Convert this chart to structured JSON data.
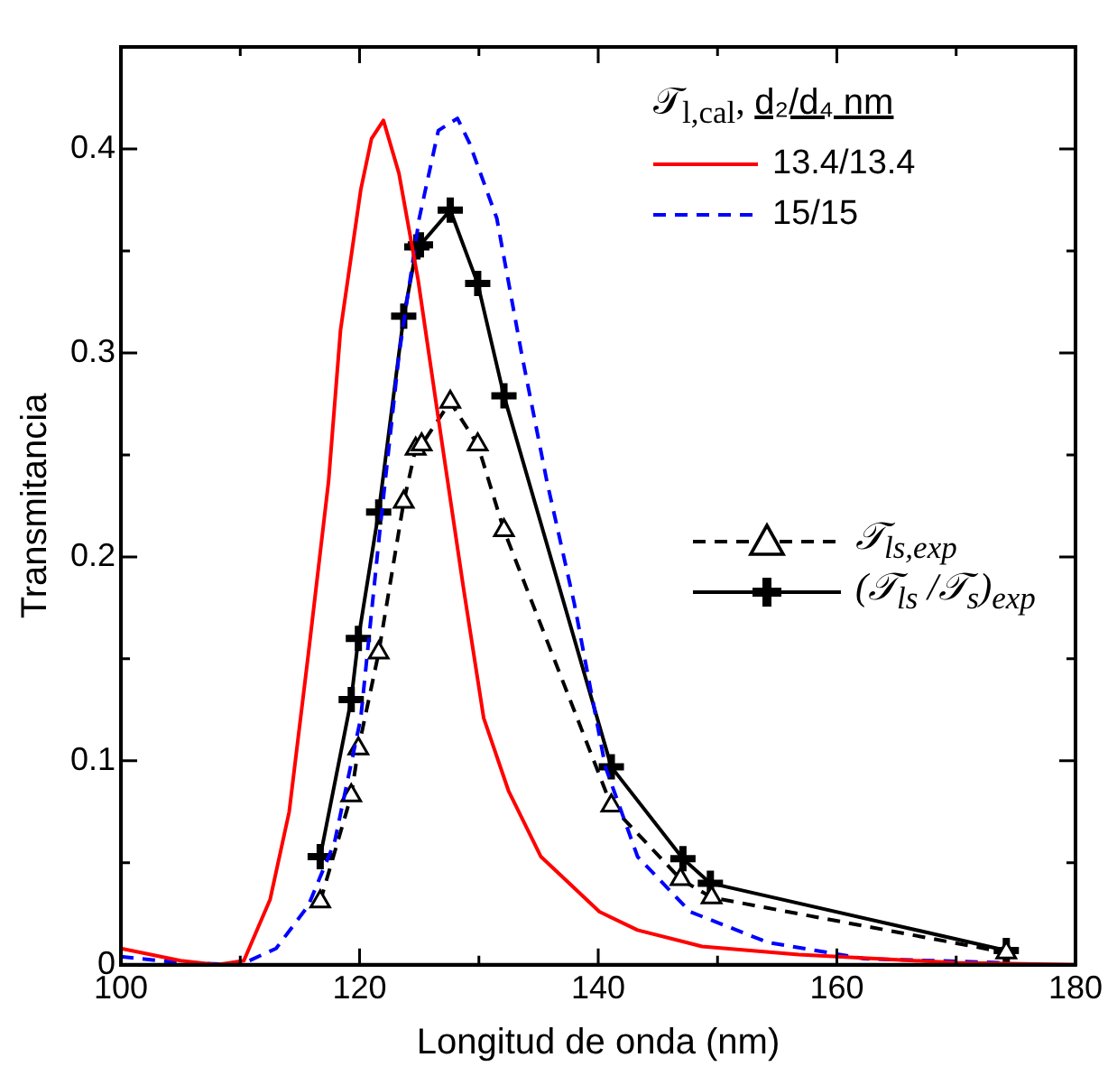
{
  "chart_data": {
    "type": "line",
    "xlabel": "Longitud de onda (nm)",
    "ylabel": "Transmitancia",
    "legend_title": "𝒯$_{l,cal}$, d₂/d₄ nm",
    "legend": "top right",
    "grid": false,
    "xlim": [
      100,
      180
    ],
    "ylim": [
      0,
      0.45
    ],
    "xticks": [
      100,
      {
        "value": 110,
        "label": null
      },
      120,
      {
        "value": 130,
        "label": null
      },
      140,
      {
        "value": 150,
        "label": null
      },
      160,
      {
        "value": 170,
        "label": null
      },
      180
    ],
    "yticks": [
      0,
      {
        "value": 0.05,
        "label": null
      },
      0.1,
      {
        "value": 0.15,
        "label": null
      },
      0.2,
      {
        "value": 0.25,
        "label": null
      },
      0.3,
      {
        "value": 0.35,
        "label": null
      },
      0.4,
      {
        "value": 0.45,
        "label": null
      }
    ],
    "series": [
      {
        "name": "13.4/13.4",
        "color": "#ff0000",
        "line_style": "solid",
        "marker": "none",
        "x": [
          100,
          105,
          108,
          110.3,
          112.5,
          114.1,
          115.7,
          117.4,
          118.4,
          120.1,
          121,
          122,
          123.3,
          124.9,
          126.6,
          128.7,
          130.4,
          132.5,
          135.2,
          140.1,
          143.3,
          148.7,
          156.8,
          170,
          180
        ],
        "values": [
          0.008,
          0.002,
          0,
          0.002,
          0.032,
          0.075,
          0.152,
          0.237,
          0.311,
          0.38,
          0.405,
          0.414,
          0.388,
          0.336,
          0.268,
          0.185,
          0.121,
          0.085,
          0.053,
          0.026,
          0.017,
          0.009,
          0.005,
          0.001,
          0
        ]
      },
      {
        "name": "15/15",
        "color": "#0000ff",
        "line_style": "dashed",
        "marker": "none",
        "x": [
          100,
          105,
          110,
          113,
          115.7,
          117.9,
          120.1,
          121.7,
          123.3,
          125,
          126.6,
          128.2,
          129.2,
          131.5,
          133.6,
          135.7,
          138,
          140.6,
          143.3,
          147.7,
          154.2,
          162.3,
          174
        ],
        "values": [
          0.004,
          0.001,
          0,
          0.008,
          0.029,
          0.06,
          0.121,
          0.213,
          0.299,
          0.366,
          0.409,
          0.415,
          0.403,
          0.366,
          0.299,
          0.237,
          0.177,
          0.097,
          0.053,
          0.026,
          0.011,
          0.003,
          0.001
        ]
      },
      {
        "name": "𝒯$_{ls,exp}$",
        "color": "#000000",
        "line_style": "dashed",
        "marker": "triangle",
        "x": [
          116.7,
          119.3,
          119.9,
          121.6,
          123.7,
          124.7,
          125.2,
          127.6,
          129.9,
          132.1,
          141.1,
          146.9,
          149.5,
          174.2
        ],
        "values": [
          0.031,
          0.083,
          0.106,
          0.153,
          0.227,
          0.253,
          0.255,
          0.276,
          0.255,
          0.213,
          0.078,
          0.042,
          0.033,
          0.006
        ]
      },
      {
        "name": "(𝒯$_{ls}$ /𝒯$_{s}$)$_{exp}$",
        "color": "#000000",
        "line_style": "solid",
        "marker": "cross",
        "x": [
          116.7,
          119.3,
          119.9,
          121.6,
          123.7,
          124.8,
          125.1,
          127.6,
          129.9,
          132.1,
          141.1,
          147.1,
          149.4,
          174.2
        ],
        "values": [
          0.053,
          0.13,
          0.16,
          0.222,
          0.318,
          0.352,
          0.353,
          0.37,
          0.334,
          0.279,
          0.097,
          0.052,
          0.04,
          0.007
        ]
      }
    ]
  }
}
